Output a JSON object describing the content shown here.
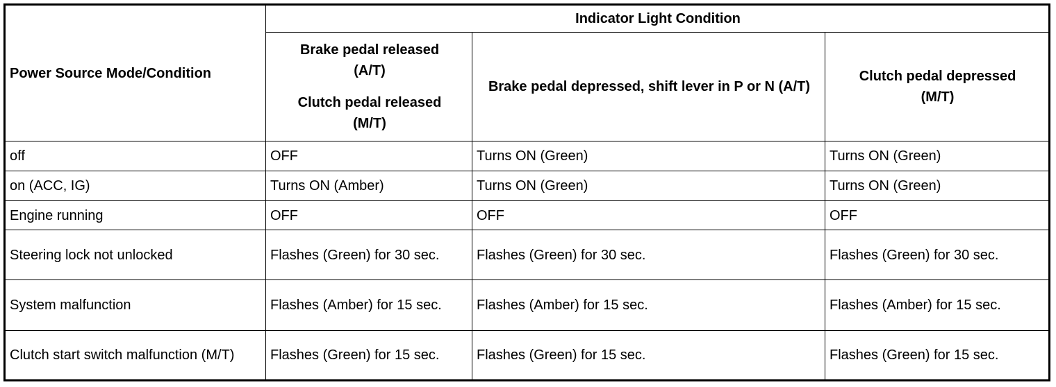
{
  "header": {
    "row_header": "Power Source Mode/Condition",
    "group_header": "Indicator Light Condition",
    "col1_line1": "Brake pedal released",
    "col1_line2": "(A/T)",
    "col1_line3": "Clutch pedal released",
    "col1_line4": "(M/T)",
    "col2": "Brake pedal depressed, shift lever in P or N (A/T)",
    "col3_line1": "Clutch pedal depressed",
    "col3_line2": "(M/T)"
  },
  "rows": [
    {
      "mode": "off",
      "c1": "OFF",
      "c2": "Turns ON (Green)",
      "c3": "Turns ON (Green)"
    },
    {
      "mode": "on (ACC, IG)",
      "c1": "Turns ON (Amber)",
      "c2": "Turns ON (Green)",
      "c3": "Turns ON (Green)"
    },
    {
      "mode": "Engine running",
      "c1": "OFF",
      "c2": "OFF",
      "c3": "OFF"
    },
    {
      "mode": "Steering lock not unlocked",
      "c1": "Flashes (Green) for 30 sec.",
      "c2": "Flashes (Green) for 30 sec.",
      "c3": "Flashes (Green) for 30 sec."
    },
    {
      "mode": "System malfunction",
      "c1": "Flashes (Amber) for 15 sec.",
      "c2": "Flashes (Amber) for 15 sec.",
      "c3": "Flashes (Amber) for 15 sec."
    },
    {
      "mode": "Clutch start switch malfunction (M/T)",
      "c1": "Flashes (Green) for 15 sec.",
      "c2": "Flashes (Green) for 15 sec.",
      "c3": "Flashes (Green) for 15 sec."
    }
  ]
}
